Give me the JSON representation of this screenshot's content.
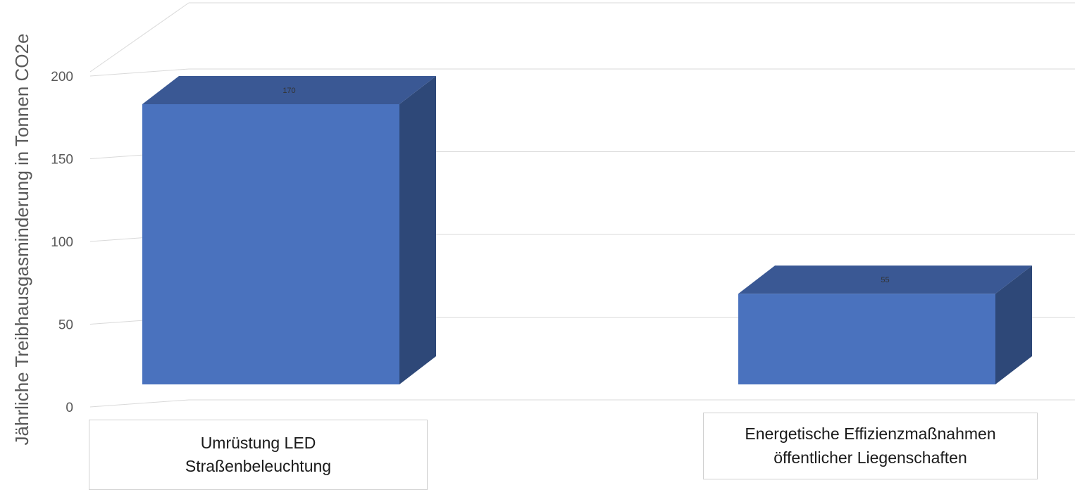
{
  "chart_data": {
    "type": "bar",
    "style": "3d",
    "categories": [
      "Umrüstung LED Straßenbeleuchtung",
      "Energetische Effizienzmaßnahmen öffentlicher Liegenschaften"
    ],
    "category_lines": [
      [
        "Umrüstung LED",
        "Straßenbeleuchtung"
      ],
      [
        "Energetische Effizienzmaßnahmen",
        "öffentlicher Liegenschaften"
      ]
    ],
    "values": [
      170,
      55
    ],
    "data_labels": [
      "170",
      "55"
    ],
    "ylabel": "Jährliche Treibhausgasminderung in Tonnen CO2e",
    "ylim": [
      0,
      200
    ],
    "yticks": [
      0,
      50,
      100,
      150,
      200
    ],
    "grid": true,
    "legend": "none",
    "colors": {
      "front": "#4a72be",
      "top": "#3a5894",
      "side": "#2e4878",
      "grid": "#d9d9d9",
      "text": "#595959"
    }
  }
}
